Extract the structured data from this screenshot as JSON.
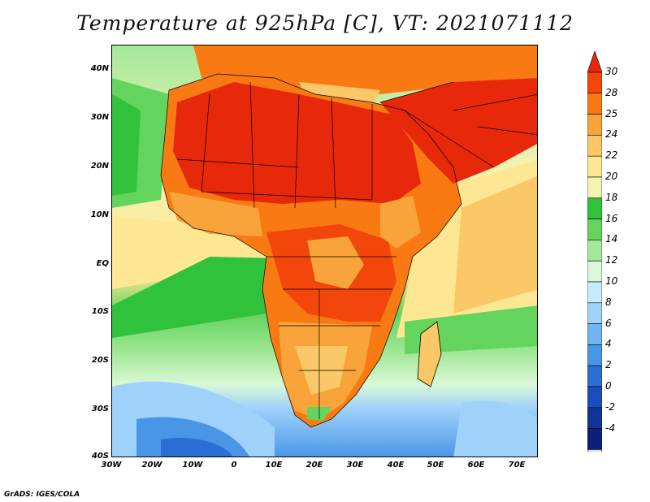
{
  "title": "Temperature at 925hPa [C], VT: 2021071112",
  "footer": "GrADS: IGES/COLA",
  "lat_labels": [
    "40N",
    "30N",
    "20N",
    "10N",
    "EQ",
    "10S",
    "20S",
    "30S",
    "40S"
  ],
  "lon_labels": [
    "30W",
    "20W",
    "10W",
    "0",
    "10E",
    "20E",
    "30E",
    "40E",
    "50E",
    "60E",
    "70E"
  ],
  "colorbar": {
    "labels": [
      "30",
      "28",
      "25",
      "24",
      "22",
      "20",
      "18",
      "16",
      "14",
      "12",
      "10",
      "8",
      "6",
      "4",
      "2",
      "0",
      "-2",
      "-4"
    ],
    "colors": [
      "#e8280a",
      "#f2460a",
      "#f97a12",
      "#f9a43a",
      "#fbc868",
      "#fde792",
      "#f6f2b3",
      "#31c23c",
      "#63d45d",
      "#a4e99a",
      "#d9f8d6",
      "#c8eaff",
      "#9fd2fb",
      "#70b4f3",
      "#4995e6",
      "#2a6fd4",
      "#1b4dbd",
      "#123399",
      "#0c1f7a",
      "#d8dcf7"
    ]
  }
}
